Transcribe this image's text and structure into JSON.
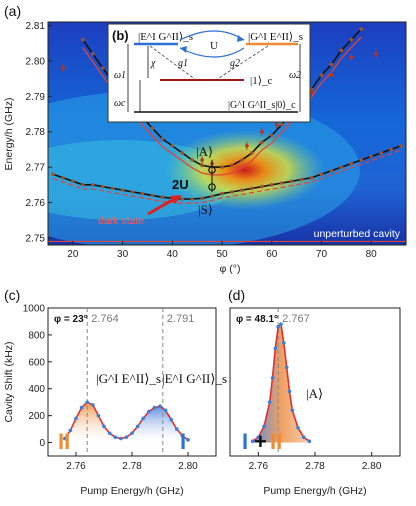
{
  "chart_data": [
    {
      "panel_label": "(a)",
      "type": "heatmap",
      "xlabel": "φ (°)",
      "ylabel": "Energy/h (GHz)",
      "xlim": [
        15,
        87
      ],
      "ylim": [
        2.748,
        2.811
      ],
      "x_ticks": [
        "20",
        "30",
        "40",
        "50",
        "60",
        "70",
        "80"
      ],
      "y_ticks": [
        "2.75",
        "2.76",
        "2.77",
        "2.78",
        "2.79",
        "2.80",
        "2.81"
      ],
      "annotations": {
        "A": "|A⟩",
        "S": "|S⟩",
        "twoU": "2U",
        "dark_state": "dark state",
        "unperturbed": "unperturbed cavity"
      },
      "unperturbed_cavity_energy": 2.749,
      "upper_branch_points": [
        [
          22,
          2.806
        ],
        [
          24,
          2.802
        ],
        [
          26,
          2.798
        ],
        [
          28,
          2.794
        ],
        [
          30,
          2.79
        ],
        [
          32,
          2.787
        ],
        [
          34,
          2.784
        ],
        [
          36,
          2.781
        ],
        [
          38,
          2.778
        ],
        [
          40,
          2.776
        ],
        [
          42,
          2.774
        ],
        [
          44,
          2.772
        ],
        [
          46,
          2.7705
        ],
        [
          48,
          2.77
        ],
        [
          50,
          2.77
        ],
        [
          52,
          2.7705
        ],
        [
          54,
          2.772
        ],
        [
          56,
          2.774
        ],
        [
          58,
          2.777
        ],
        [
          60,
          2.779
        ],
        [
          62,
          2.782
        ],
        [
          64,
          2.785
        ],
        [
          66,
          2.789
        ],
        [
          68,
          2.792
        ],
        [
          70,
          2.796
        ],
        [
          72,
          2.799
        ],
        [
          74,
          2.803
        ],
        [
          76,
          2.806
        ],
        [
          78,
          2.809
        ]
      ],
      "lower_branch_points": [
        [
          16,
          2.768
        ],
        [
          18,
          2.767
        ],
        [
          20,
          2.766
        ],
        [
          22,
          2.765
        ],
        [
          24,
          2.765
        ],
        [
          26,
          2.7645
        ],
        [
          28,
          2.764
        ],
        [
          30,
          2.7635
        ],
        [
          32,
          2.763
        ],
        [
          34,
          2.7625
        ],
        [
          36,
          2.762
        ],
        [
          38,
          2.7615
        ],
        [
          40,
          2.7612
        ],
        [
          42,
          2.761
        ],
        [
          44,
          2.761
        ],
        [
          46,
          2.7612
        ],
        [
          48,
          2.7618
        ],
        [
          50,
          2.7625
        ],
        [
          52,
          2.763
        ],
        [
          54,
          2.7635
        ],
        [
          56,
          2.764
        ],
        [
          58,
          2.7645
        ],
        [
          60,
          2.765
        ],
        [
          62,
          2.7655
        ],
        [
          64,
          2.766
        ],
        [
          66,
          2.7665
        ],
        [
          68,
          2.767
        ],
        [
          70,
          2.768
        ],
        [
          72,
          2.769
        ],
        [
          74,
          2.77
        ],
        [
          76,
          2.771
        ],
        [
          78,
          2.772
        ],
        [
          80,
          2.773
        ],
        [
          82,
          2.774
        ],
        [
          84,
          2.775
        ],
        [
          86,
          2.776
        ]
      ],
      "error_points": [
        [
          18,
          2.798
        ],
        [
          46,
          2.772
        ],
        [
          48,
          2.771
        ],
        [
          55,
          2.776
        ],
        [
          58,
          2.78
        ],
        [
          61,
          2.782
        ],
        [
          64,
          2.787
        ],
        [
          68,
          2.791
        ],
        [
          72,
          2.796
        ],
        [
          76,
          2.801
        ],
        [
          81,
          2.802
        ]
      ],
      "inset": {
        "label": "(b)",
        "top_left_state": "|E^I G^II⟩_s",
        "top_right_state": "|G^I E^II⟩_s",
        "coupling": "U",
        "middle_state": "|1⟩_c",
        "bottom_state": "|G^I G^II_s|0⟩_c",
        "omega1": "ω1",
        "omega2": "ω2",
        "omegac": "ωc",
        "chi": "χ",
        "g1": "g1",
        "g2": "g2"
      }
    },
    {
      "panel_label": "(c)",
      "type": "line",
      "title": "φ = 23°",
      "xlabel": "Pump Energy/h (GHz)",
      "ylabel": "Cavity Shift (kHz)",
      "xlim": [
        2.75,
        2.81
      ],
      "ylim": [
        -100,
        1000
      ],
      "x_ticks": [
        "2.76",
        "2.78",
        "2.80"
      ],
      "y_ticks": [
        "0",
        "200",
        "400",
        "600",
        "800",
        "1000"
      ],
      "peak_markers": [
        2.764,
        2.791
      ],
      "peak_marker_labels": [
        "2.764",
        "2.791"
      ],
      "state_labels": [
        "|G^I E^II⟩_s",
        "|E^I G^II⟩_s"
      ],
      "roman_labels": [
        "II",
        "I"
      ],
      "series": [
        {
          "x": [
            2.756,
            2.758,
            2.76,
            2.762,
            2.764,
            2.766,
            2.768,
            2.77,
            2.772,
            2.774,
            2.776,
            2.778,
            2.78,
            2.782,
            2.784,
            2.786,
            2.788,
            2.79,
            2.792,
            2.794,
            2.796,
            2.798,
            2.8
          ],
          "values": [
            30,
            90,
            180,
            260,
            300,
            280,
            200,
            120,
            70,
            40,
            30,
            40,
            70,
            120,
            180,
            230,
            260,
            270,
            240,
            170,
            100,
            50,
            20
          ]
        }
      ]
    },
    {
      "panel_label": "(d)",
      "type": "line",
      "title": "φ = 48.1°",
      "xlabel": "Pump Energy/h (GHz)",
      "ylabel": "",
      "xlim": [
        2.75,
        2.81
      ],
      "ylim": [
        -100,
        1000
      ],
      "x_ticks": [
        "2.76",
        "2.78",
        "2.80"
      ],
      "peak_markers": [
        2.767
      ],
      "peak_marker_labels": [
        "2.767"
      ],
      "state_labels": [
        "|A⟩"
      ],
      "roman_labels": [
        "I",
        "II"
      ],
      "plus": "+",
      "series": [
        {
          "x": [
            2.758,
            2.76,
            2.762,
            2.764,
            2.765,
            2.766,
            2.767,
            2.768,
            2.769,
            2.77,
            2.771,
            2.772,
            2.774,
            2.776,
            2.778
          ],
          "values": [
            10,
            40,
            120,
            300,
            480,
            700,
            860,
            880,
            740,
            560,
            380,
            240,
            110,
            40,
            10
          ]
        }
      ]
    }
  ]
}
